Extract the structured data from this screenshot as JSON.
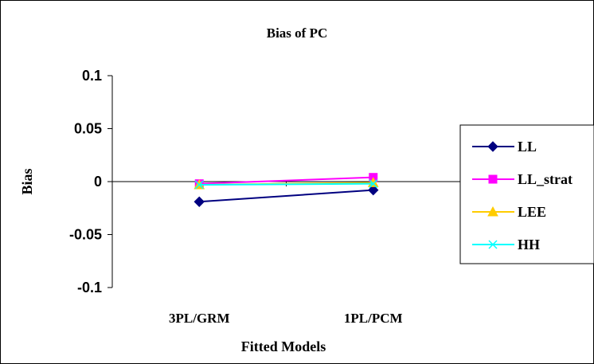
{
  "chart_data": {
    "type": "line",
    "title": "Bias of PC",
    "xlabel": "Fitted Models",
    "ylabel": "Bias",
    "categories": [
      "3PL/GRM",
      "1PL/PCM"
    ],
    "ylim": [
      -0.1,
      0.1
    ],
    "yticks": [
      "0.1",
      "0.05",
      "0",
      "-0.05",
      "-0.1"
    ],
    "ytick_values": [
      0.1,
      0.05,
      0,
      -0.05,
      -0.1
    ],
    "grid": false,
    "legend_position": "right",
    "series": [
      {
        "name": "LL",
        "values": [
          -0.019,
          -0.008
        ],
        "color": "#000080",
        "marker": "diamond"
      },
      {
        "name": "LL_strat",
        "values": [
          -0.002,
          0.004
        ],
        "color": "#ff00ff",
        "marker": "square"
      },
      {
        "name": "LEE",
        "values": [
          -0.003,
          -0.001
        ],
        "color": "#ffcc00",
        "marker": "triangle"
      },
      {
        "name": "HH",
        "values": [
          -0.003,
          -0.002
        ],
        "color": "#00ffff",
        "marker": "x"
      }
    ]
  }
}
